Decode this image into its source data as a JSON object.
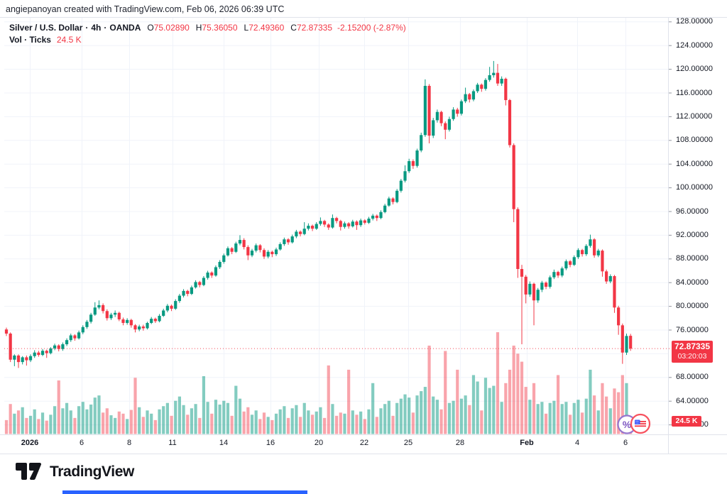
{
  "header": {
    "attribution": "angiepanoyan created with TradingView.com, Feb 06, 2026 06:39 UTC"
  },
  "legend": {
    "symbol": "Silver / U.S. Dollar",
    "sep": "·",
    "interval": "4h",
    "exchange": "OANDA",
    "ohlc": {
      "o_label": "O",
      "o": "75.02890",
      "h_label": "H",
      "h": "75.36050",
      "l_label": "L",
      "l": "72.49360",
      "c_label": "C",
      "c": "72.87335",
      "change": "-2.15200 (-2.87%)"
    },
    "volume_label": "Vol · Ticks",
    "volume_value": "24.5 K"
  },
  "price_axis": {
    "labels": [
      "128.00000",
      "124.00000",
      "120.00000",
      "116.00000",
      "112.00000",
      "108.00000",
      "104.00000",
      "100.00000",
      "96.00000",
      "92.00000",
      "88.00000",
      "84.00000",
      "80.00000",
      "76.00000",
      "68.00000",
      "64.00000",
      "60.00000"
    ],
    "badge": {
      "price": "72.87335",
      "countdown": "03:20:03"
    },
    "volume_badge": "24.5 K"
  },
  "footer": {
    "brand": "TradingView"
  },
  "colors": {
    "up": "#089981",
    "down": "#f23645",
    "vol_up": "rgba(8,153,129,0.5)",
    "vol_down": "rgba(242,54,69,0.45)",
    "grid": "#f0f3fa",
    "border": "#e0e3eb",
    "axis_text": "#131722",
    "badge": "#f23645",
    "brand_blue": "#2962ff",
    "event_purple": "#7e57c2",
    "event_red": "#f7525f",
    "flag_blue": "#3d5afe"
  },
  "chart_data": {
    "type": "candlestick+volume",
    "title": "Silver / U.S. Dollar · 4h · OANDA",
    "interval": "4h",
    "exchange": "OANDA",
    "legend_position": "top-left",
    "grid": true,
    "y_axis": {
      "min": 60,
      "max": 128,
      "step": 4
    },
    "x_axis_ticks": [
      "2026",
      "6",
      "8",
      "11",
      "14",
      "16",
      "20",
      "22",
      "25",
      "28",
      "Feb",
      "4",
      "6"
    ],
    "x_ticks": [
      {
        "label": "2026",
        "x": 42,
        "bold": true
      },
      {
        "label": "6",
        "x": 115,
        "bold": false
      },
      {
        "label": "8",
        "x": 182,
        "bold": false
      },
      {
        "label": "11",
        "x": 243,
        "bold": false
      },
      {
        "label": "14",
        "x": 315,
        "bold": false
      },
      {
        "label": "16",
        "x": 381,
        "bold": false
      },
      {
        "label": "20",
        "x": 449,
        "bold": false
      },
      {
        "label": "22",
        "x": 513,
        "bold": false
      },
      {
        "label": "25",
        "x": 575,
        "bold": false
      },
      {
        "label": "28",
        "x": 648,
        "bold": false
      },
      {
        "label": "Feb",
        "x": 742,
        "bold": true
      },
      {
        "label": "4",
        "x": 813,
        "bold": false
      },
      {
        "label": "6",
        "x": 881,
        "bold": false
      }
    ],
    "last": {
      "open": 75.0289,
      "high": 75.3605,
      "low": 72.4936,
      "close": 72.87335,
      "change": -2.152,
      "change_pct": -2.87,
      "countdown": "03:20:03",
      "volume_ticks": "24.5K"
    },
    "volume_unit": "K ticks",
    "candles_format": [
      "open",
      "high",
      "low",
      "close",
      "volume_k"
    ],
    "candles": [
      [
        76.1,
        76.4,
        75.0,
        75.4,
        26
      ],
      [
        75.4,
        75.6,
        70.6,
        71.0,
        56
      ],
      [
        71.0,
        71.9,
        69.9,
        71.7,
        38
      ],
      [
        71.7,
        71.9,
        69.6,
        70.6,
        44
      ],
      [
        70.6,
        71.6,
        70.2,
        71.4,
        50
      ],
      [
        71.4,
        71.7,
        70.0,
        70.9,
        30
      ],
      [
        70.9,
        71.9,
        70.6,
        71.6,
        34
      ],
      [
        71.6,
        72.6,
        71.3,
        72.2,
        46
      ],
      [
        72.2,
        72.5,
        71.5,
        71.8,
        28
      ],
      [
        71.8,
        72.8,
        71.6,
        72.5,
        40
      ],
      [
        72.5,
        72.7,
        71.3,
        72.1,
        25
      ],
      [
        72.1,
        73.1,
        71.9,
        72.9,
        36
      ],
      [
        72.9,
        73.7,
        72.6,
        73.4,
        52
      ],
      [
        73.4,
        73.6,
        72.4,
        72.8,
        100
      ],
      [
        72.8,
        73.9,
        72.5,
        73.6,
        48
      ],
      [
        73.6,
        74.6,
        73.3,
        74.3,
        58
      ],
      [
        74.3,
        75.4,
        74.0,
        75.1,
        44
      ],
      [
        75.1,
        75.3,
        74.2,
        74.6,
        30
      ],
      [
        74.6,
        75.9,
        74.4,
        75.6,
        52
      ],
      [
        75.6,
        76.8,
        75.3,
        76.5,
        60
      ],
      [
        76.5,
        77.7,
        76.2,
        77.4,
        46
      ],
      [
        77.4,
        78.9,
        77.1,
        78.6,
        55
      ],
      [
        78.6,
        80.7,
        78.4,
        79.8,
        68
      ],
      [
        79.8,
        81.0,
        79.5,
        80.2,
        72
      ],
      [
        80.2,
        80.5,
        78.8,
        79.2,
        40
      ],
      [
        79.2,
        79.5,
        77.6,
        78.0,
        48
      ],
      [
        78.0,
        78.9,
        77.7,
        78.6,
        35
      ],
      [
        78.6,
        79.3,
        78.2,
        78.9,
        30
      ],
      [
        78.9,
        79.1,
        77.5,
        77.8,
        42
      ],
      [
        77.8,
        78.1,
        76.8,
        77.2,
        38
      ],
      [
        77.2,
        78.0,
        76.9,
        77.7,
        28
      ],
      [
        77.7,
        77.9,
        76.4,
        76.8,
        45
      ],
      [
        76.8,
        77.0,
        75.6,
        76.1,
        105
      ],
      [
        76.1,
        76.9,
        75.8,
        76.6,
        50
      ],
      [
        76.6,
        76.9,
        75.9,
        76.3,
        32
      ],
      [
        76.3,
        77.4,
        76.1,
        77.2,
        44
      ],
      [
        77.2,
        78.2,
        77.0,
        77.9,
        38
      ],
      [
        77.9,
        78.1,
        77.2,
        77.5,
        26
      ],
      [
        77.5,
        78.7,
        77.3,
        78.4,
        46
      ],
      [
        78.4,
        79.6,
        78.2,
        79.3,
        52
      ],
      [
        79.3,
        80.4,
        79.0,
        80.1,
        58
      ],
      [
        80.1,
        80.3,
        79.2,
        79.6,
        34
      ],
      [
        79.6,
        81.2,
        79.4,
        80.9,
        62
      ],
      [
        80.9,
        82.1,
        80.6,
        81.8,
        70
      ],
      [
        81.8,
        82.9,
        81.5,
        82.6,
        54
      ],
      [
        82.6,
        82.8,
        81.7,
        82.1,
        36
      ],
      [
        82.1,
        83.5,
        81.9,
        83.2,
        48
      ],
      [
        83.2,
        84.4,
        83.0,
        84.1,
        56
      ],
      [
        84.1,
        84.3,
        83.2,
        83.6,
        30
      ],
      [
        83.6,
        85.1,
        83.4,
        84.8,
        108
      ],
      [
        84.8,
        86.0,
        84.5,
        85.7,
        60
      ],
      [
        85.7,
        85.9,
        84.8,
        85.2,
        38
      ],
      [
        85.2,
        86.9,
        85.0,
        86.6,
        64
      ],
      [
        86.6,
        87.8,
        86.3,
        87.5,
        55
      ],
      [
        87.5,
        88.9,
        87.2,
        88.6,
        62
      ],
      [
        88.6,
        90.1,
        88.4,
        89.8,
        58
      ],
      [
        89.8,
        90.0,
        88.8,
        89.2,
        34
      ],
      [
        89.2,
        90.9,
        89.0,
        90.6,
        90
      ],
      [
        90.6,
        92.0,
        90.3,
        91.2,
        66
      ],
      [
        91.2,
        91.5,
        89.6,
        90.0,
        42
      ],
      [
        90.0,
        90.3,
        87.8,
        88.6,
        50
      ],
      [
        88.6,
        89.7,
        88.3,
        89.4,
        36
      ],
      [
        89.4,
        90.6,
        89.1,
        90.3,
        44
      ],
      [
        90.3,
        90.5,
        89.1,
        89.5,
        28
      ],
      [
        89.5,
        89.8,
        88.0,
        88.4,
        40
      ],
      [
        88.4,
        89.5,
        88.1,
        89.2,
        32
      ],
      [
        89.2,
        89.4,
        88.3,
        88.8,
        26
      ],
      [
        88.8,
        89.9,
        88.5,
        89.6,
        38
      ],
      [
        89.6,
        90.8,
        89.4,
        90.5,
        46
      ],
      [
        90.5,
        91.6,
        90.2,
        91.3,
        52
      ],
      [
        91.3,
        91.5,
        90.4,
        90.8,
        30
      ],
      [
        90.8,
        92.1,
        90.6,
        91.8,
        48
      ],
      [
        91.8,
        92.9,
        91.5,
        92.6,
        54
      ],
      [
        92.6,
        92.8,
        91.8,
        92.2,
        32
      ],
      [
        92.2,
        94.2,
        92.0,
        93.1,
        58
      ],
      [
        93.1,
        94.0,
        92.8,
        93.6,
        44
      ],
      [
        93.6,
        93.8,
        92.7,
        93.1,
        36
      ],
      [
        93.1,
        94.2,
        92.9,
        93.9,
        42
      ],
      [
        93.9,
        95.0,
        93.6,
        94.4,
        50
      ],
      [
        94.4,
        94.6,
        93.4,
        93.8,
        30
      ],
      [
        93.8,
        94.0,
        92.9,
        93.3,
        128
      ],
      [
        93.3,
        95.5,
        93.1,
        94.9,
        56
      ],
      [
        94.9,
        95.1,
        94.0,
        94.4,
        34
      ],
      [
        94.4,
        94.6,
        92.8,
        93.4,
        40
      ],
      [
        93.4,
        94.3,
        93.1,
        94.0,
        38
      ],
      [
        94.0,
        94.2,
        93.1,
        93.5,
        120
      ],
      [
        93.5,
        94.6,
        93.3,
        94.3,
        44
      ],
      [
        94.3,
        94.5,
        92.9,
        93.7,
        36
      ],
      [
        93.7,
        94.8,
        93.4,
        94.5,
        42
      ],
      [
        94.5,
        94.7,
        93.8,
        94.1,
        28
      ],
      [
        94.1,
        95.1,
        93.9,
        94.8,
        46
      ],
      [
        94.8,
        95.6,
        94.5,
        95.3,
        95
      ],
      [
        95.3,
        95.5,
        94.4,
        94.9,
        32
      ],
      [
        94.9,
        96.2,
        94.7,
        95.9,
        48
      ],
      [
        95.9,
        97.3,
        95.7,
        97.0,
        56
      ],
      [
        97.0,
        98.5,
        96.8,
        98.2,
        62
      ],
      [
        98.2,
        98.4,
        97.2,
        97.6,
        34
      ],
      [
        97.6,
        99.8,
        97.4,
        99.5,
        58
      ],
      [
        99.5,
        101.5,
        99.2,
        101.2,
        66
      ],
      [
        101.2,
        103.8,
        100.9,
        102.8,
        74
      ],
      [
        102.8,
        104.9,
        102.5,
        104.5,
        68
      ],
      [
        104.5,
        104.8,
        103.2,
        103.7,
        40
      ],
      [
        103.7,
        106.6,
        103.4,
        106.3,
        72
      ],
      [
        106.3,
        109.3,
        106.0,
        108.9,
        80
      ],
      [
        108.9,
        118.3,
        108.6,
        117.2,
        88
      ],
      [
        117.2,
        117.5,
        107.5,
        108.8,
        165
      ],
      [
        108.8,
        111.8,
        108.4,
        111.4,
        70
      ],
      [
        111.4,
        113.2,
        111.0,
        112.8,
        64
      ],
      [
        112.8,
        113.0,
        110.4,
        110.9,
        46
      ],
      [
        110.9,
        111.2,
        108.2,
        109.8,
        155
      ],
      [
        109.8,
        112.0,
        109.5,
        111.6,
        58
      ],
      [
        111.6,
        113.6,
        111.3,
        113.2,
        62
      ],
      [
        113.2,
        113.5,
        112.0,
        112.5,
        120
      ],
      [
        112.5,
        114.9,
        112.2,
        114.6,
        66
      ],
      [
        114.6,
        116.9,
        114.3,
        115.8,
        72
      ],
      [
        115.8,
        116.0,
        114.4,
        114.9,
        54
      ],
      [
        114.9,
        116.6,
        114.6,
        116.3,
        110
      ],
      [
        116.3,
        117.7,
        116.0,
        117.4,
        98
      ],
      [
        117.4,
        117.6,
        116.2,
        116.7,
        44
      ],
      [
        116.7,
        118.5,
        116.4,
        118.2,
        105
      ],
      [
        118.2,
        120.4,
        117.9,
        119.0,
        86
      ],
      [
        119.0,
        121.4,
        118.6,
        119.4,
        90
      ],
      [
        119.4,
        120.9,
        117.2,
        117.6,
        190
      ],
      [
        117.6,
        118.8,
        117.2,
        118.4,
        60
      ],
      [
        118.4,
        118.6,
        113.9,
        114.8,
        95
      ],
      [
        114.8,
        115.0,
        106.8,
        107.2,
        120
      ],
      [
        107.2,
        107.5,
        94.2,
        96.4,
        165
      ],
      [
        96.4,
        96.7,
        84.8,
        86.3,
        150
      ],
      [
        86.3,
        87.0,
        73.6,
        85.0,
        135
      ],
      [
        85.0,
        85.3,
        80.5,
        82.0,
        88
      ],
      [
        82.0,
        84.2,
        81.6,
        83.8,
        64
      ],
      [
        83.8,
        84.0,
        76.8,
        81.0,
        95
      ],
      [
        81.0,
        83.1,
        80.6,
        82.8,
        56
      ],
      [
        82.8,
        84.3,
        82.4,
        84.0,
        60
      ],
      [
        84.0,
        84.2,
        82.9,
        83.3,
        38
      ],
      [
        83.3,
        85.2,
        83.0,
        84.9,
        58
      ],
      [
        84.9,
        86.2,
        84.6,
        85.8,
        62
      ],
      [
        85.8,
        86.0,
        84.8,
        85.2,
        110
      ],
      [
        85.2,
        86.7,
        84.9,
        86.4,
        56
      ],
      [
        86.4,
        87.9,
        86.1,
        87.6,
        60
      ],
      [
        87.6,
        87.8,
        86.6,
        87.0,
        36
      ],
      [
        87.0,
        88.6,
        86.8,
        88.3,
        58
      ],
      [
        88.3,
        89.8,
        88.0,
        89.5,
        64
      ],
      [
        89.5,
        89.7,
        88.4,
        88.8,
        40
      ],
      [
        88.8,
        90.5,
        88.5,
        90.2,
        66
      ],
      [
        90.2,
        92.1,
        89.9,
        91.3,
        120
      ],
      [
        91.3,
        91.5,
        88.2,
        88.6,
        72
      ],
      [
        88.6,
        89.7,
        88.3,
        89.4,
        44
      ],
      [
        89.4,
        89.6,
        85.0,
        85.9,
        95
      ],
      [
        85.9,
        86.2,
        83.8,
        84.2,
        70
      ],
      [
        84.2,
        85.4,
        83.9,
        85.1,
        48
      ],
      [
        85.1,
        85.3,
        78.9,
        79.8,
        85
      ],
      [
        79.8,
        80.1,
        75.2,
        76.8,
        78
      ],
      [
        76.8,
        77.1,
        70.3,
        72.2,
        110
      ],
      [
        72.2,
        75.4,
        71.8,
        75.0,
        95
      ],
      [
        75.0289,
        75.3605,
        72.4936,
        72.87335,
        24.5
      ]
    ]
  }
}
